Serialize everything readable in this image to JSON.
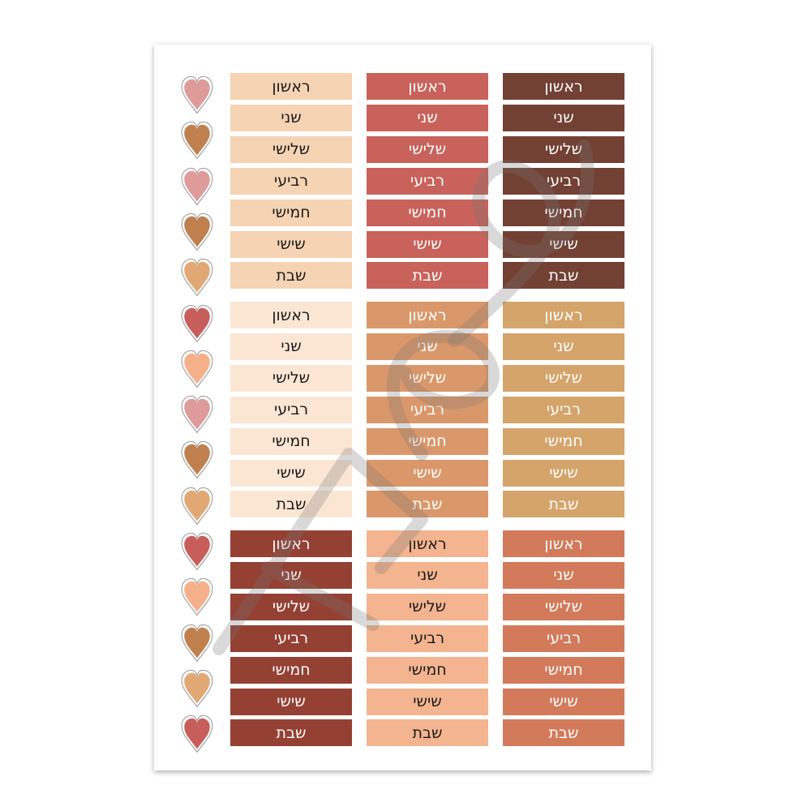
{
  "days": [
    "ראשון",
    "שני",
    "שלישי",
    "רביעי",
    "חמישי",
    "שישי",
    "שבת"
  ],
  "blocks": [
    {
      "columns": [
        {
          "bg": "#f5d3b3",
          "text": "#1a1a1a"
        },
        {
          "bg": "#c8625a",
          "text": "#ffffff"
        },
        {
          "bg": "#724134",
          "text": "#ffffff"
        }
      ]
    },
    {
      "columns": [
        {
          "bg": "#fbe6d4",
          "text": "#1a1a1a"
        },
        {
          "bg": "#da986a",
          "text": "#ffffff"
        },
        {
          "bg": "#d5a46a",
          "text": "#ffffff"
        }
      ]
    },
    {
      "columns": [
        {
          "bg": "#944134",
          "text": "#ffffff"
        },
        {
          "bg": "#f3b48f",
          "text": "#1a1a1a"
        },
        {
          "bg": "#d27a5a",
          "text": "#ffffff"
        }
      ]
    }
  ],
  "hearts": [
    "#df9a9a",
    "#c0804e",
    "#df9a9a",
    "#c0804e",
    "#e2a873",
    "#c85e5a",
    "#f5b08a",
    "#df9a9a",
    "#c0804e",
    "#e2a873",
    "#c85e5a",
    "#f5b08a",
    "#c0804e",
    "#e2a873",
    "#c85e5a"
  ]
}
